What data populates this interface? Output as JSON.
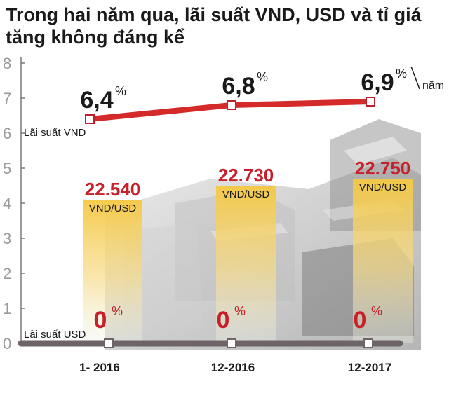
{
  "chart_data": {
    "type": "bar",
    "title_lines": [
      "Trong hai năm qua, lãi suất VND, USD và tỉ giá",
      "tăng không đáng kể"
    ],
    "categories": [
      "1- 2016",
      "12-2016",
      "12-2017"
    ],
    "y_ticks": [
      "0",
      "1",
      "2",
      "3",
      "4",
      "5",
      "6",
      "7",
      "8"
    ],
    "ylim": [
      0,
      8
    ],
    "grid": false,
    "exchange_rate": {
      "unit": "VND/USD",
      "values": [
        22540,
        22730,
        22750
      ],
      "labels": [
        "22.540",
        "22.730",
        "22.750"
      ],
      "bar_heights": [
        4.1,
        4.5,
        4.7
      ],
      "color": "#f2c84b"
    },
    "vnd_rate": {
      "name": "Lãi suất VND",
      "values": [
        6.4,
        6.8,
        6.9
      ],
      "labels": [
        "6,4",
        "6,8",
        "6,9"
      ],
      "percent": "%",
      "per_year": "năm",
      "color": "#d42a2a"
    },
    "usd_rate": {
      "name": "Lãi suất USD",
      "values": [
        0,
        0,
        0
      ],
      "labels": [
        "0",
        "0",
        "0"
      ],
      "percent": "%",
      "color": "#6e6468"
    }
  }
}
